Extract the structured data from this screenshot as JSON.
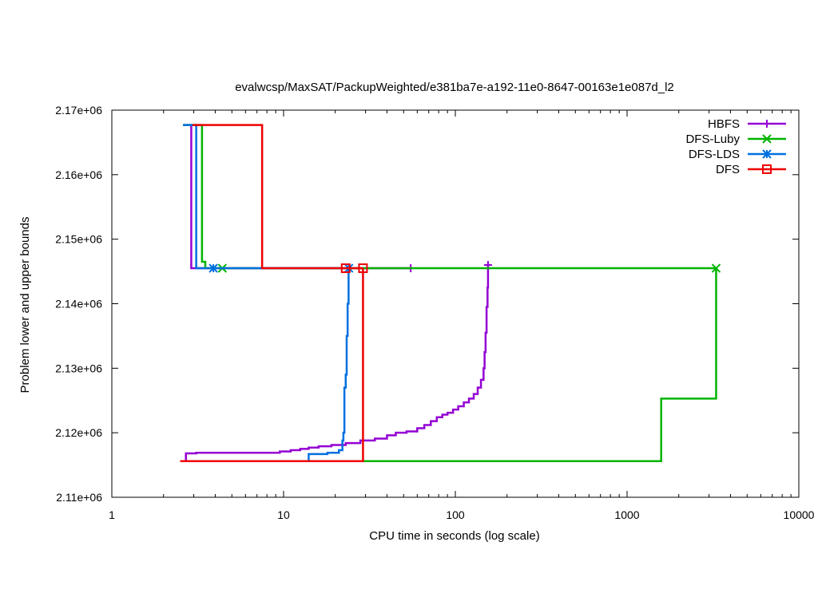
{
  "chart_data": {
    "type": "line",
    "title": "evalwcsp/MaxSAT/PackupWeighted/e381ba7e-a192-11e0-8647-00163e1e087d_l2",
    "xlabel": "CPU time in seconds (log scale)",
    "ylabel": "Problem lower and upper bounds",
    "x_scale": "log",
    "xlim": [
      1,
      10000
    ],
    "ylim": [
      2110000,
      2170000
    ],
    "x_ticks": [
      {
        "value": 1,
        "label": "1"
      },
      {
        "value": 10,
        "label": "10"
      },
      {
        "value": 100,
        "label": "100"
      },
      {
        "value": 1000,
        "label": "1000"
      },
      {
        "value": 10000,
        "label": "10000"
      }
    ],
    "y_ticks": [
      {
        "value": 2110000,
        "label": "2.11e+06"
      },
      {
        "value": 2120000,
        "label": "2.12e+06"
      },
      {
        "value": 2130000,
        "label": "2.13e+06"
      },
      {
        "value": 2140000,
        "label": "2.14e+06"
      },
      {
        "value": 2150000,
        "label": "2.15e+06"
      },
      {
        "value": 2160000,
        "label": "2.16e+06"
      },
      {
        "value": 2170000,
        "label": "2.17e+06"
      }
    ],
    "grid": false,
    "legend_position": "top-right",
    "series": [
      {
        "name": "HBFS",
        "color": "#9400d3",
        "marker": "plus",
        "upper": [
          [
            2.6,
            2167700
          ],
          [
            2.9,
            2167700
          ],
          [
            2.9,
            2145500
          ],
          [
            55,
            2145500
          ]
        ],
        "upper_markers": [
          [
            55,
            2145500
          ]
        ],
        "lower": [
          [
            2.7,
            2115700
          ],
          [
            2.7,
            2116800
          ],
          [
            3.1,
            2116800
          ],
          [
            3.1,
            2116900
          ],
          [
            9.5,
            2116900
          ],
          [
            9.5,
            2117100
          ],
          [
            11,
            2117100
          ],
          [
            11,
            2117300
          ],
          [
            12.5,
            2117300
          ],
          [
            12.5,
            2117500
          ],
          [
            14,
            2117500
          ],
          [
            14,
            2117700
          ],
          [
            16,
            2117700
          ],
          [
            16,
            2117900
          ],
          [
            19,
            2117900
          ],
          [
            19,
            2118100
          ],
          [
            23,
            2118100
          ],
          [
            23,
            2118400
          ],
          [
            28,
            2118400
          ],
          [
            28,
            2118800
          ],
          [
            34,
            2118800
          ],
          [
            34,
            2119100
          ],
          [
            40,
            2119100
          ],
          [
            40,
            2119600
          ],
          [
            45,
            2119600
          ],
          [
            45,
            2120000
          ],
          [
            52,
            2120000
          ],
          [
            52,
            2120200
          ],
          [
            60,
            2120200
          ],
          [
            60,
            2120700
          ],
          [
            66,
            2120700
          ],
          [
            66,
            2121200
          ],
          [
            72,
            2121200
          ],
          [
            72,
            2121800
          ],
          [
            78,
            2121800
          ],
          [
            78,
            2122400
          ],
          [
            84,
            2122400
          ],
          [
            84,
            2122800
          ],
          [
            90,
            2122800
          ],
          [
            90,
            2123100
          ],
          [
            97,
            2123100
          ],
          [
            97,
            2123600
          ],
          [
            104,
            2123600
          ],
          [
            104,
            2124100
          ],
          [
            112,
            2124100
          ],
          [
            112,
            2124700
          ],
          [
            120,
            2124700
          ],
          [
            120,
            2125300
          ],
          [
            128,
            2125300
          ],
          [
            128,
            2126000
          ],
          [
            135,
            2126000
          ],
          [
            135,
            2127000
          ],
          [
            141,
            2127000
          ],
          [
            141,
            2128200
          ],
          [
            146,
            2128200
          ],
          [
            146,
            2130000
          ],
          [
            148,
            2130000
          ],
          [
            148,
            2132500
          ],
          [
            150,
            2132500
          ],
          [
            150,
            2135500
          ],
          [
            152,
            2135500
          ],
          [
            152,
            2139500
          ],
          [
            154,
            2139500
          ],
          [
            154,
            2142500
          ],
          [
            155,
            2142500
          ],
          [
            155,
            2145500
          ],
          [
            155,
            2146200
          ]
        ],
        "lower_markers": [
          [
            155,
            2146000
          ]
        ]
      },
      {
        "name": "DFS-Luby",
        "color": "#00b400",
        "marker": "cross",
        "upper": [
          [
            2.6,
            2167700
          ],
          [
            3.35,
            2167700
          ],
          [
            3.35,
            2146500
          ],
          [
            3.5,
            2146500
          ],
          [
            3.5,
            2145500
          ],
          [
            3300,
            2145500
          ]
        ],
        "upper_markers": [
          [
            4.4,
            2145500
          ],
          [
            3300,
            2145500
          ]
        ],
        "lower": [
          [
            2.9,
            2115600
          ],
          [
            1580,
            2115600
          ],
          [
            1580,
            2125300
          ],
          [
            3300,
            2125300
          ],
          [
            3300,
            2145500
          ]
        ],
        "lower_markers": []
      },
      {
        "name": "DFS-LDS",
        "color": "#0070e0",
        "marker": "star",
        "upper": [
          [
            2.6,
            2167700
          ],
          [
            3.1,
            2167700
          ],
          [
            3.1,
            2145500
          ],
          [
            24,
            2145500
          ]
        ],
        "upper_markers": [
          [
            3.9,
            2145500
          ],
          [
            24,
            2145500
          ]
        ],
        "lower": [
          [
            14,
            2115600
          ],
          [
            14,
            2116700
          ],
          [
            18,
            2116700
          ],
          [
            18,
            2116900
          ],
          [
            21,
            2116900
          ],
          [
            21,
            2117300
          ],
          [
            22,
            2117300
          ],
          [
            22,
            2118800
          ],
          [
            22.3,
            2118800
          ],
          [
            22.3,
            2120000
          ],
          [
            22.6,
            2120000
          ],
          [
            22.6,
            2127000
          ],
          [
            23,
            2127000
          ],
          [
            23,
            2129000
          ],
          [
            23.3,
            2129000
          ],
          [
            23.3,
            2135000
          ],
          [
            23.6,
            2135000
          ],
          [
            23.6,
            2140000
          ],
          [
            23.9,
            2140000
          ],
          [
            23.9,
            2145500
          ]
        ],
        "lower_markers": []
      },
      {
        "name": "DFS",
        "color": "#ee0000",
        "marker": "square",
        "upper": [
          [
            2.95,
            2167700
          ],
          [
            7.5,
            2167700
          ],
          [
            7.5,
            2145500
          ],
          [
            29,
            2145500
          ]
        ],
        "upper_markers": [
          [
            23,
            2145500
          ],
          [
            29,
            2145500
          ]
        ],
        "lower": [
          [
            2.5,
            2115600
          ],
          [
            29,
            2115600
          ],
          [
            29,
            2145500
          ]
        ],
        "lower_markers": []
      }
    ]
  }
}
